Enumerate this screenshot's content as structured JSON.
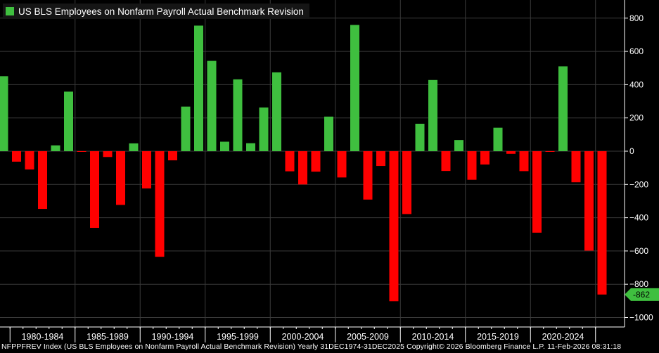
{
  "chart_data": {
    "type": "bar",
    "title": "US BLS Employees on Nonfarm Payroll Actual Benchmark Revision",
    "series_name": "US BLS Employees on Nonfarm Payroll Actual Benchmark Revision",
    "x": [
      1979,
      1980,
      1981,
      1982,
      1983,
      1984,
      1985,
      1986,
      1987,
      1988,
      1989,
      1990,
      1991,
      1992,
      1993,
      1994,
      1995,
      1996,
      1997,
      1998,
      1999,
      2000,
      2001,
      2002,
      2003,
      2004,
      2005,
      2006,
      2007,
      2008,
      2009,
      2010,
      2011,
      2012,
      2013,
      2014,
      2015,
      2016,
      2017,
      2018,
      2019,
      2020,
      2021,
      2022,
      2023,
      2024,
      2025
    ],
    "values": [
      451,
      -63,
      -110,
      -347,
      35,
      358,
      -4,
      -461,
      -35,
      -323,
      47,
      -224,
      -635,
      -55,
      268,
      755,
      543,
      57,
      432,
      48,
      263,
      474,
      -121,
      -200,
      -123,
      208,
      -158,
      759,
      -291,
      -89,
      -902,
      -378,
      165,
      428,
      -119,
      67,
      -172,
      -80,
      141,
      -16,
      -120,
      -490,
      -4,
      510,
      -187,
      -598,
      -862
    ],
    "positive_color": "#3fbf3f",
    "negative_color": "#ff0000",
    "x_ticks": [
      {
        "label": "1980-1984",
        "start": 1980,
        "end": 1984
      },
      {
        "label": "1985-1989",
        "start": 1985,
        "end": 1989
      },
      {
        "label": "1990-1994",
        "start": 1990,
        "end": 1994
      },
      {
        "label": "1995-1999",
        "start": 1995,
        "end": 1999
      },
      {
        "label": "2000-2004",
        "start": 2000,
        "end": 2004
      },
      {
        "label": "2005-2009",
        "start": 2005,
        "end": 2009
      },
      {
        "label": "2010-2014",
        "start": 2010,
        "end": 2014
      },
      {
        "label": "2015-2019",
        "start": 2015,
        "end": 2019
      },
      {
        "label": "2020-2024",
        "start": 2020,
        "end": 2024
      }
    ],
    "y_ticks": [
      800,
      600,
      400,
      200,
      0,
      -200,
      -400,
      -600,
      -800,
      -1000
    ],
    "ylim": [
      -1000,
      900
    ],
    "y_axis_side": "right",
    "grid": true,
    "last_value_label": "-862",
    "legend_position": "top-left"
  },
  "footer": "NFPPFREV Index (US BLS Employees on Nonfarm Payroll Actual Benchmark Revision) Yearly 31DEC1974-31DEC2025 Copyright© 2026 Bloomberg Finance L.P. 11-Feb-2026 08:31:18"
}
